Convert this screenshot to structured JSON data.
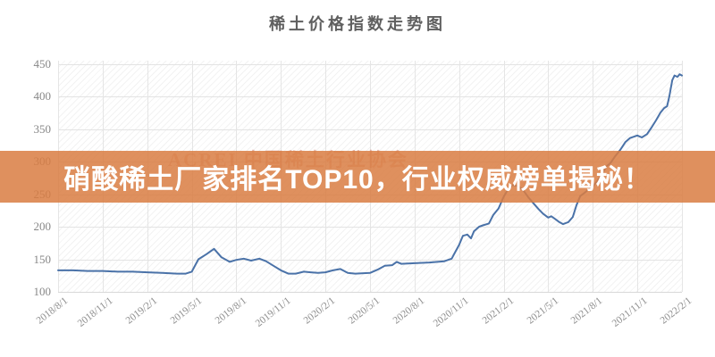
{
  "title": "稀土价格指数走势图",
  "watermark": "ACREI 中国稀土行业协会",
  "banner": {
    "text": "硝酸稀土厂家排名TOP10，行业权威榜单揭秘！",
    "bg_color": "#d97d42",
    "text_color": "#ffffff"
  },
  "chart_data": {
    "type": "line",
    "title": "稀土价格指数走势图",
    "series_name": "稀土价格指数",
    "line_color": "#4a72a8",
    "grid": true,
    "legend": "none",
    "ylabel": "",
    "xlabel": "",
    "ylim": [
      100,
      450
    ],
    "y_ticks": [
      100,
      150,
      200,
      250,
      300,
      350,
      400,
      450
    ],
    "x_tick_labels": [
      "2018/8/1",
      "2018/11/1",
      "2019/2/1",
      "2019/5/1",
      "2019/8/1",
      "2019/11/1",
      "2020/2/1",
      "2020/5/1",
      "2020/8/1",
      "2020/11/1",
      "2021/2/1",
      "2021/5/1",
      "2021/8/1",
      "2021/11/1",
      "2022/2/1"
    ],
    "x_unit": "months_since_2018_08",
    "x_range_months": 42,
    "points": [
      [
        0,
        133
      ],
      [
        1,
        133
      ],
      [
        2,
        132
      ],
      [
        3,
        132
      ],
      [
        4,
        131
      ],
      [
        5,
        131
      ],
      [
        6,
        130
      ],
      [
        7,
        129
      ],
      [
        8,
        128
      ],
      [
        8.6,
        128
      ],
      [
        9,
        131
      ],
      [
        9.45,
        150
      ],
      [
        10,
        158
      ],
      [
        10.5,
        166
      ],
      [
        11,
        153
      ],
      [
        11.55,
        146
      ],
      [
        12,
        149
      ],
      [
        12.5,
        151
      ],
      [
        13,
        148
      ],
      [
        13.55,
        151
      ],
      [
        14,
        147
      ],
      [
        14.5,
        140
      ],
      [
        15,
        133
      ],
      [
        15.5,
        128
      ],
      [
        16,
        128
      ],
      [
        16.55,
        131
      ],
      [
        17,
        130
      ],
      [
        17.5,
        129
      ],
      [
        18,
        130
      ],
      [
        18.5,
        133
      ],
      [
        19,
        135
      ],
      [
        19.5,
        129
      ],
      [
        20,
        128
      ],
      [
        21,
        129
      ],
      [
        21.5,
        134
      ],
      [
        22,
        140
      ],
      [
        22.5,
        141
      ],
      [
        22.8,
        146
      ],
      [
        23.1,
        143
      ],
      [
        24,
        144
      ],
      [
        25,
        145
      ],
      [
        26,
        147
      ],
      [
        26.5,
        151
      ],
      [
        26.78,
        163
      ],
      [
        27,
        172
      ],
      [
        27.25,
        186
      ],
      [
        27.55,
        188
      ],
      [
        27.8,
        182
      ],
      [
        28,
        193
      ],
      [
        28.35,
        200
      ],
      [
        28.6,
        202
      ],
      [
        29,
        205
      ],
      [
        29.3,
        218
      ],
      [
        29.65,
        228
      ],
      [
        30,
        246
      ],
      [
        30.3,
        258
      ],
      [
        30.6,
        264
      ],
      [
        31,
        262
      ],
      [
        31.35,
        255
      ],
      [
        31.7,
        244
      ],
      [
        32,
        236
      ],
      [
        32.35,
        227
      ],
      [
        32.65,
        220
      ],
      [
        33,
        214
      ],
      [
        33.2,
        216
      ],
      [
        33.45,
        212
      ],
      [
        33.75,
        207
      ],
      [
        34,
        204
      ],
      [
        34.35,
        207
      ],
      [
        34.65,
        215
      ],
      [
        34.9,
        233
      ],
      [
        35.15,
        247
      ],
      [
        35.45,
        252
      ],
      [
        35.75,
        258
      ],
      [
        36,
        262
      ],
      [
        36.3,
        270
      ],
      [
        36.6,
        280
      ],
      [
        36.9,
        292
      ],
      [
        37.2,
        298
      ],
      [
        37.5,
        308
      ],
      [
        37.85,
        318
      ],
      [
        38.2,
        330
      ],
      [
        38.5,
        336
      ],
      [
        39,
        340
      ],
      [
        39.3,
        337
      ],
      [
        39.65,
        342
      ],
      [
        39.95,
        352
      ],
      [
        40.25,
        363
      ],
      [
        40.55,
        375
      ],
      [
        40.8,
        382
      ],
      [
        41,
        385
      ],
      [
        41.15,
        400
      ],
      [
        41.35,
        425
      ],
      [
        41.5,
        432
      ],
      [
        41.7,
        430
      ],
      [
        41.85,
        434
      ],
      [
        42,
        432
      ]
    ]
  }
}
